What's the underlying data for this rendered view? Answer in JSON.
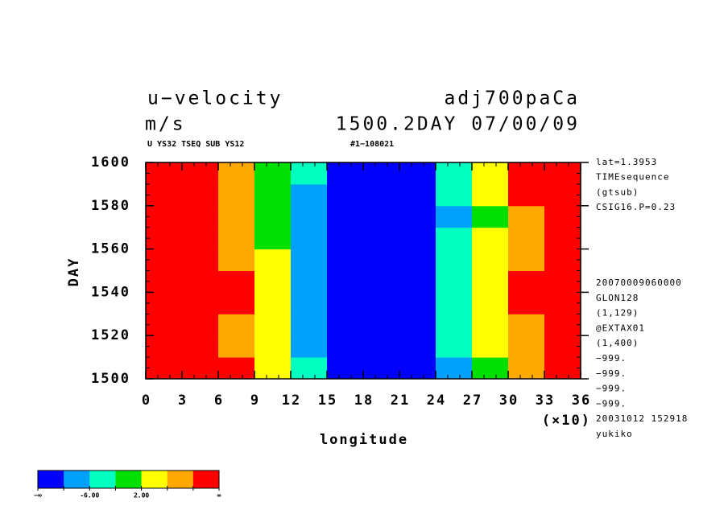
{
  "chart_data": {
    "type": "heatmap",
    "title": "u−velocity",
    "title_right": "adj700paCa",
    "subtitle": "m/s",
    "subtitle_right": "1500.2DAY 07/00/09",
    "info_left": "U YS32 TSEQ SUB YS12",
    "info_right": "#1−108021",
    "x_label": "longitude",
    "x_multiplier": "(×10)",
    "y_label": "DAY",
    "xlim": [
      0,
      36
    ],
    "xticks": [
      0,
      3,
      6,
      9,
      12,
      15,
      18,
      21,
      24,
      27,
      30,
      33,
      36
    ],
    "ylim": [
      1500,
      1600
    ],
    "yticks": [
      1500,
      1520,
      1540,
      1560,
      1580,
      1600
    ],
    "x": [
      1.5,
      4.5,
      7.5,
      10.5,
      13.5,
      16.5,
      19.5,
      22.5,
      25.5,
      28.5,
      31.5,
      34.5
    ],
    "y": [
      1505,
      1515,
      1525,
      1535,
      1545,
      1555,
      1565,
      1575,
      1585,
      1595
    ],
    "values": [
      [
        12,
        12,
        11,
        4,
        -4,
        -12,
        -12,
        -12,
        -8,
        0,
        9,
        12
      ],
      [
        12,
        12,
        8,
        3,
        -10,
        -12,
        -12,
        -12,
        -4,
        3,
        8,
        12
      ],
      [
        12,
        11,
        9,
        3,
        -9,
        -12,
        -12,
        -12,
        -3,
        4,
        9,
        12
      ],
      [
        12,
        12,
        10,
        4,
        -7,
        -12,
        -12,
        -11,
        -3,
        4,
        10,
        12
      ],
      [
        12,
        12,
        11,
        4,
        -8,
        -12,
        -12,
        -11,
        -3,
        5,
        11,
        12
      ],
      [
        12,
        11,
        8,
        2,
        -9,
        -12,
        -12,
        -12,
        -5,
        3,
        9,
        12
      ],
      [
        12,
        12,
        8,
        1,
        -10,
        -12,
        -12,
        -12,
        -5,
        2,
        8,
        12
      ],
      [
        12,
        11,
        7,
        -1,
        -10,
        -12,
        -12,
        -12,
        -7,
        1,
        9,
        12
      ],
      [
        12,
        12,
        8,
        0,
        -8,
        -12,
        -12,
        -11,
        -4,
        4,
        10,
        12
      ],
      [
        12,
        11,
        9,
        1,
        -4,
        -12,
        -12,
        -12,
        -3,
        5,
        12,
        12
      ]
    ],
    "levels": [
      -10,
      -6,
      -2,
      2,
      6,
      10
    ],
    "colors": [
      "#0000ff",
      "#00a0ff",
      "#00ffc0",
      "#00e000",
      "#ffff00",
      "#ffa800",
      "#ff0000"
    ],
    "colorbar_ticks": [
      {
        "value": null,
        "label": "−∞"
      },
      {
        "value": -6,
        "label": "-6.00"
      },
      {
        "value": 2,
        "label": "2.00"
      },
      {
        "value": null,
        "label": "∞"
      }
    ],
    "notes_top": [
      "lat=1.3953",
      "TIMEsequence",
      "(gtsub)",
      "CSIG16.P=0.23"
    ],
    "notes_bottom": [
      "20070009060000",
      "GLON128",
      "(1,129)",
      "@EXTAX01",
      "(1,400)",
      "−999.",
      "−999.",
      "−999.",
      "−999.",
      "20031012 152918",
      "yukiko"
    ]
  }
}
